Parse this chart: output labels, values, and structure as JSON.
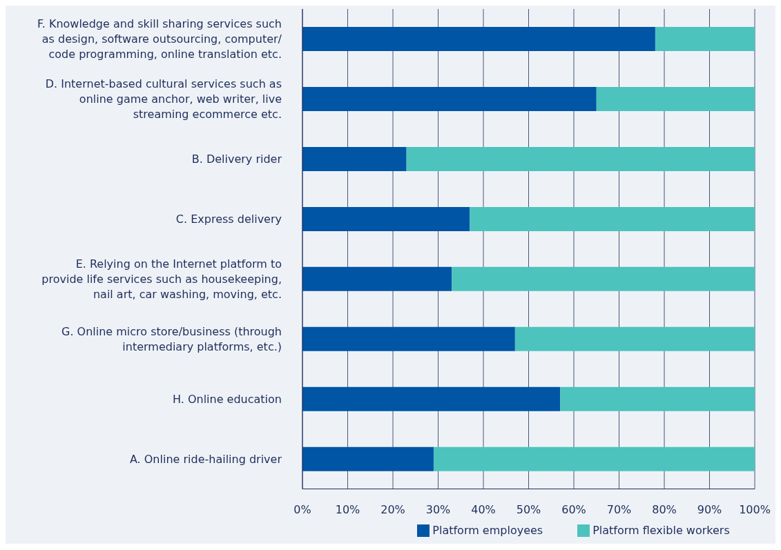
{
  "chart_data": {
    "type": "bar",
    "orientation": "horizontal",
    "stacked": true,
    "categories": [
      "F. Knowledge and skill sharing services such as design, software outsourcing, computer/ code programming, online translation etc.",
      "D. Internet-based cultural services such as online game anchor, web writer, live streaming ecommerce etc.",
      "B. Delivery rider",
      "C. Express delivery",
      "E. Relying on the Internet platform to provide life services such as housekeeping, nail art, car washing, moving, etc.",
      "G. Online micro store/business (through intermediary platforms, etc.)",
      "H. Online education",
      "A. Online ride-hailing driver"
    ],
    "series": [
      {
        "name": "Platform employees",
        "color": "#0055a5",
        "values": [
          78,
          65,
          23,
          37,
          33,
          47,
          57,
          29
        ]
      },
      {
        "name": "Platform flexible workers",
        "color": "#4dc3bd",
        "values": [
          22,
          35,
          77,
          63,
          67,
          53,
          43,
          71
        ]
      }
    ],
    "xlim": [
      0,
      100
    ],
    "xticks": [
      {
        "value": 0,
        "label": "0%"
      },
      {
        "value": 10,
        "label": "10%"
      },
      {
        "value": 20,
        "label": "20%"
      },
      {
        "value": 30,
        "label": "30%"
      },
      {
        "value": 40,
        "label": "40%"
      },
      {
        "value": 50,
        "label": "50%"
      },
      {
        "value": 60,
        "label": "60%"
      },
      {
        "value": 70,
        "label": "70%"
      },
      {
        "value": 80,
        "label": "80%"
      },
      {
        "value": 90,
        "label": "90%"
      },
      {
        "value": 100,
        "label": "100%"
      }
    ],
    "grid": "x",
    "legend": "bottom"
  }
}
